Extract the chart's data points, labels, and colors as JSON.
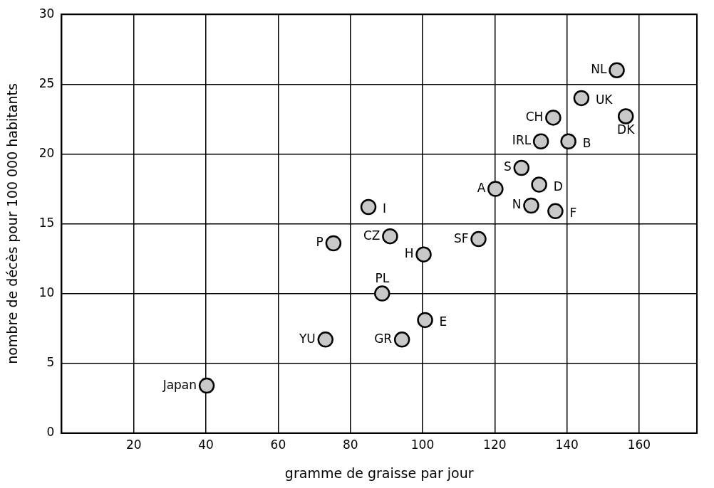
{
  "chart_data": {
    "type": "scatter",
    "xlabel": "gramme de graisse par jour",
    "ylabel": "nombre de décès pour 100 000 habitants",
    "xlim": [
      0,
      176
    ],
    "xticks": [
      20,
      40,
      60,
      80,
      100,
      120,
      140,
      160
    ],
    "ylim": [
      0,
      30
    ],
    "yticks": [
      0,
      5,
      10,
      15,
      20,
      25,
      30
    ],
    "grid": true,
    "marker": "circle",
    "legend": false,
    "series": [
      {
        "name": "Japan",
        "color": "#c8c8c8",
        "x": [
          40.2
        ],
        "values": [
          3.4
        ]
      },
      {
        "name": "YU",
        "color": "#c8c8c8",
        "x": [
          73.1
        ],
        "values": [
          6.7
        ]
      },
      {
        "name": "GR",
        "color": "#c8c8c8",
        "x": [
          94.3
        ],
        "values": [
          6.7
        ]
      },
      {
        "name": "P",
        "color": "#c8c8c8",
        "x": [
          75.3
        ],
        "values": [
          13.6
        ]
      },
      {
        "name": "PL",
        "color": "#c8c8c8",
        "x": [
          88.8
        ],
        "values": [
          10.0
        ]
      },
      {
        "name": "E",
        "color": "#c8c8c8",
        "x": [
          100.7
        ],
        "values": [
          8.1
        ]
      },
      {
        "name": "CZ",
        "color": "#c8c8c8",
        "x": [
          91.0
        ],
        "values": [
          14.1
        ]
      },
      {
        "name": "H",
        "color": "#c8c8c8",
        "x": [
          100.3
        ],
        "values": [
          12.8
        ]
      },
      {
        "name": "I",
        "color": "#c8c8c8",
        "x": [
          85.0
        ],
        "values": [
          16.2
        ]
      },
      {
        "name": "SF",
        "color": "#c8c8c8",
        "x": [
          115.5
        ],
        "values": [
          13.9
        ]
      },
      {
        "name": "A",
        "color": "#c8c8c8",
        "x": [
          120.2
        ],
        "values": [
          17.5
        ]
      },
      {
        "name": "S",
        "color": "#c8c8c8",
        "x": [
          127.4
        ],
        "values": [
          19.0
        ]
      },
      {
        "name": "D",
        "color": "#c8c8c8",
        "x": [
          132.3
        ],
        "values": [
          17.8
        ]
      },
      {
        "name": "N",
        "color": "#c8c8c8",
        "x": [
          130.1
        ],
        "values": [
          16.3
        ]
      },
      {
        "name": "F",
        "color": "#c8c8c8",
        "x": [
          136.8
        ],
        "values": [
          15.9
        ]
      },
      {
        "name": "IRL",
        "color": "#c8c8c8",
        "x": [
          132.8
        ],
        "values": [
          20.9
        ]
      },
      {
        "name": "CH",
        "color": "#c8c8c8",
        "x": [
          136.2
        ],
        "values": [
          22.6
        ]
      },
      {
        "name": "B",
        "color": "#c8c8c8",
        "x": [
          140.4
        ],
        "values": [
          20.9
        ]
      },
      {
        "name": "UK",
        "color": "#c8c8c8",
        "x": [
          144.0
        ],
        "values": [
          24.0
        ]
      },
      {
        "name": "DK",
        "color": "#c8c8c8",
        "x": [
          156.3
        ],
        "values": [
          22.7
        ]
      },
      {
        "name": "NL",
        "color": "#c8c8c8",
        "x": [
          153.8
        ],
        "values": [
          26.0
        ]
      }
    ]
  }
}
